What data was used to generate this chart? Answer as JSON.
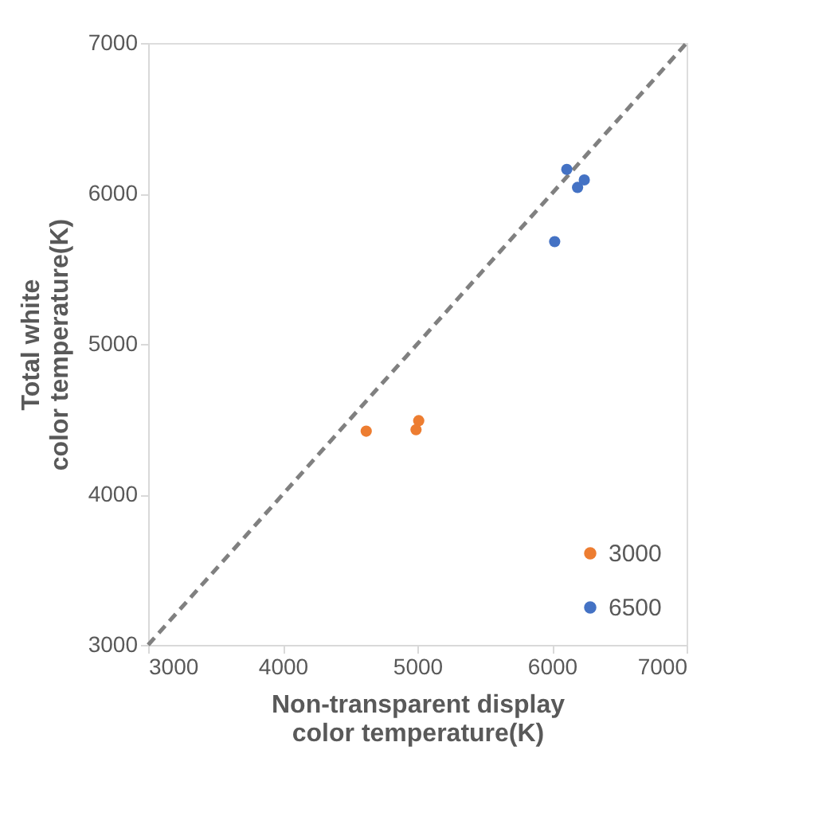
{
  "chart_data": {
    "type": "scatter",
    "xlabel": "Non-transparent display\ncolor temperature(K)",
    "ylabel": "Total white\ncolor temperature(K)",
    "xlim": [
      3000,
      7000
    ],
    "ylim": [
      3000,
      7000
    ],
    "xticks": [
      3000,
      4000,
      5000,
      6000,
      7000
    ],
    "yticks": [
      3000,
      4000,
      5000,
      6000,
      7000
    ],
    "grid": false,
    "legend": "bottom right",
    "marker": "circle",
    "series": [
      {
        "type": "line",
        "color": "#808080",
        "line_style": "dashed",
        "marker": "none",
        "x": [
          3000,
          7000
        ],
        "values": [
          3000,
          7000
        ]
      },
      {
        "name": "3000",
        "color": "#ed7d31",
        "x": [
          4620,
          5010,
          4990
        ],
        "values": [
          4420,
          4490,
          4430
        ]
      },
      {
        "name": "6500",
        "color": "#4472c4",
        "x": [
          6110,
          6190,
          6240,
          6020
        ],
        "values": [
          6160,
          6040,
          6090,
          5680
        ]
      }
    ]
  }
}
